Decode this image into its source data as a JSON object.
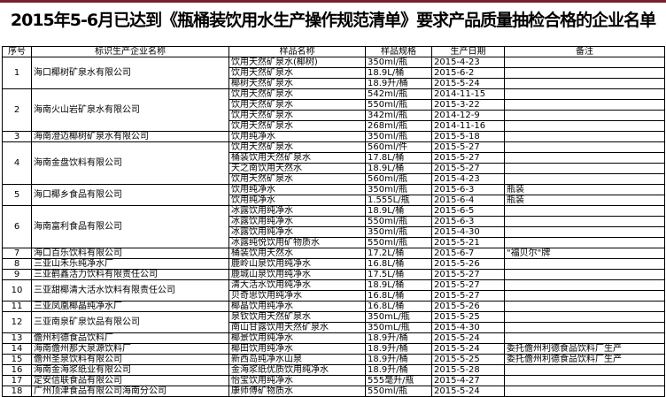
{
  "title": "2015年5-6月已达到《瓶桶装饮用水生产操作规范清单》要求产品质量抽检合格的企业名单",
  "accent_color": "#7a1f2b",
  "headers": [
    "序号",
    "标识生产企业名称",
    "样品名称",
    "样品规格",
    "生产日期",
    "备注"
  ],
  "companies": [
    {
      "no": "1",
      "name": "海口椰树矿泉水有限公司",
      "items": [
        {
          "sample": "饮用天然矿泉水(椰树)",
          "spec": "350ml/瓶",
          "date": "2015-4-23",
          "note": ""
        },
        {
          "sample": "饮用天然矿泉水",
          "spec": "18.9L/桶",
          "date": "2015-6-2",
          "note": ""
        },
        {
          "sample": "椰树天然矿泉水",
          "spec": "18.9升/桶",
          "date": "2015-5-24",
          "note": ""
        }
      ]
    },
    {
      "no": "2",
      "name": "海南火山岩矿泉水有限公司",
      "items": [
        {
          "sample": "饮用天然矿泉水",
          "spec": "542ml/瓶",
          "date": "2014-11-15",
          "note": ""
        },
        {
          "sample": "饮用天然矿泉水",
          "spec": "550ml/瓶",
          "date": "2015-3-22",
          "note": ""
        },
        {
          "sample": "饮用天然矿泉水",
          "spec": "342ml/瓶",
          "date": "2014-12-9",
          "note": ""
        },
        {
          "sample": "饮用天然矿泉水",
          "spec": "268ml/瓶",
          "date": "2014-11-16",
          "note": ""
        }
      ]
    },
    {
      "no": "3",
      "name": "海南澄迈椰树矿泉水有限公司",
      "items": [
        {
          "sample": "饮用纯净水",
          "spec": "350ml/瓶",
          "date": "2015-5-18",
          "note": ""
        }
      ]
    },
    {
      "no": "4",
      "name": "海南金盘饮料有限公司",
      "items": [
        {
          "sample": "饮用天然矿泉水",
          "spec": "560ml/件",
          "date": "2015-5-27",
          "note": ""
        },
        {
          "sample": "桶装饮用天然矿泉水",
          "spec": "17.8L/桶",
          "date": "2015-5-27",
          "note": ""
        },
        {
          "sample": "天之南饮用天然水",
          "spec": "18.9L/桶",
          "date": "2015-5-27",
          "note": ""
        },
        {
          "sample": "饮用天然矿泉水",
          "spec": "560ml/瓶",
          "date": "2015-4-23",
          "note": ""
        }
      ]
    },
    {
      "no": "5",
      "name": "海口椰乡食品有限公司",
      "items": [
        {
          "sample": "饮用纯净水",
          "spec": "350ml/瓶",
          "date": "2015-6-3",
          "note": "瓶装"
        },
        {
          "sample": "饮用纯净水",
          "spec": "1.555L/瓶",
          "date": "2015-6-4",
          "note": "瓶装"
        }
      ]
    },
    {
      "no": "6",
      "name": "海南富利食品有限公司",
      "items": [
        {
          "sample": "冰露饮用纯净水",
          "spec": "18.9L/桶",
          "date": "2015-6-5",
          "note": ""
        },
        {
          "sample": "冰露饮用纯净水",
          "spec": "550ml/瓶",
          "date": "2015-6-3",
          "note": ""
        },
        {
          "sample": "冰露饮用纯净水",
          "spec": "350ml/瓶",
          "date": "2015-4-30",
          "note": ""
        },
        {
          "sample": "冰露纯悦饮用矿物质水",
          "spec": "550ml/瓶",
          "date": "2015-5-21",
          "note": ""
        }
      ]
    },
    {
      "no": "7",
      "name": "海口百乐饮料有限公司",
      "items": [
        {
          "sample": "桶装饮用天然水",
          "spec": "17.2L/桶",
          "date": "2015-6-7",
          "note": "\"福贝尔\"牌"
        }
      ]
    },
    {
      "no": "8",
      "name": "三亚山禾乐纯净水厂",
      "items": [
        {
          "sample": "鹿岭山泉饮用纯净水",
          "spec": "16.8L/桶",
          "date": "2015-5-26",
          "note": ""
        }
      ]
    },
    {
      "no": "9",
      "name": "三亚鹤鑫活力饮料有限责任公司",
      "items": [
        {
          "sample": "鹿城山泉饮用纯净水",
          "spec": "17.5L/桶",
          "date": "2015-5-27",
          "note": ""
        }
      ]
    },
    {
      "no": "10",
      "name": "三亚甜椰清大活水饮料有限责任公司",
      "items": [
        {
          "sample": "清大活水饮用纯净水",
          "spec": "18.9L/桶",
          "date": "2015-5-27",
          "note": ""
        },
        {
          "sample": "贝奇思饮用纯净水",
          "spec": "16.8L/桶",
          "date": "2015-5-27",
          "note": ""
        }
      ]
    },
    {
      "no": "11",
      "name": "三亚凤凰椰晶纯净水厂",
      "items": [
        {
          "sample": "椰晶饮用纯净水",
          "spec": "16.8L/桶",
          "date": "2015-5-26",
          "note": ""
        }
      ]
    },
    {
      "no": "12",
      "name": "三亚南泉矿泉饮品有限公司",
      "items": [
        {
          "sample": "泉钦饮用天然矿泉水",
          "spec": "350mL/瓶",
          "date": "2015-5-25",
          "note": ""
        },
        {
          "sample": "南山甘露饮用天然矿泉水",
          "spec": "350mL/瓶",
          "date": "2015-4-30",
          "note": ""
        }
      ]
    },
    {
      "no": "13",
      "name": "儋州利德食品饮料厂",
      "items": [
        {
          "sample": "椰景饮用纯净水",
          "spec": "18.9升/桶",
          "date": "2015-5-24",
          "note": ""
        }
      ]
    },
    {
      "no": "14",
      "name": "海南儋州那大泉源饮料厂",
      "items": [
        {
          "sample": "椰田饮用纯净水",
          "spec": "18.9升/桶",
          "date": "2015-5-24",
          "note": "委托儋州利德食品饮料厂生产"
        }
      ]
    },
    {
      "no": "15",
      "name": "儋州圣泉饮料有限公司",
      "items": [
        {
          "sample": "新西岛纯净水山泉",
          "spec": "18.9升/桶",
          "date": "2015-5-25",
          "note": "委托儋州利德食品饮料厂生产"
        }
      ]
    },
    {
      "no": "16",
      "name": "海南金海浆纸业有限公司",
      "items": [
        {
          "sample": "金海浆纸优质饮用纯净水",
          "spec": "18.9升/桶",
          "date": "2015-5-28",
          "note": ""
        }
      ]
    },
    {
      "no": "17",
      "name": "定安信联食品有限公司",
      "items": [
        {
          "sample": "怡宝饮用纯净水",
          "spec": "555毫升/瓶",
          "date": "2015-4-27",
          "note": ""
        }
      ]
    },
    {
      "no": "18",
      "name": "广州顶津食品有限公司海南分公司",
      "items": [
        {
          "sample": "康师傅矿物质水",
          "spec": "550ml/瓶",
          "date": "2015-5-24",
          "note": ""
        }
      ]
    }
  ]
}
